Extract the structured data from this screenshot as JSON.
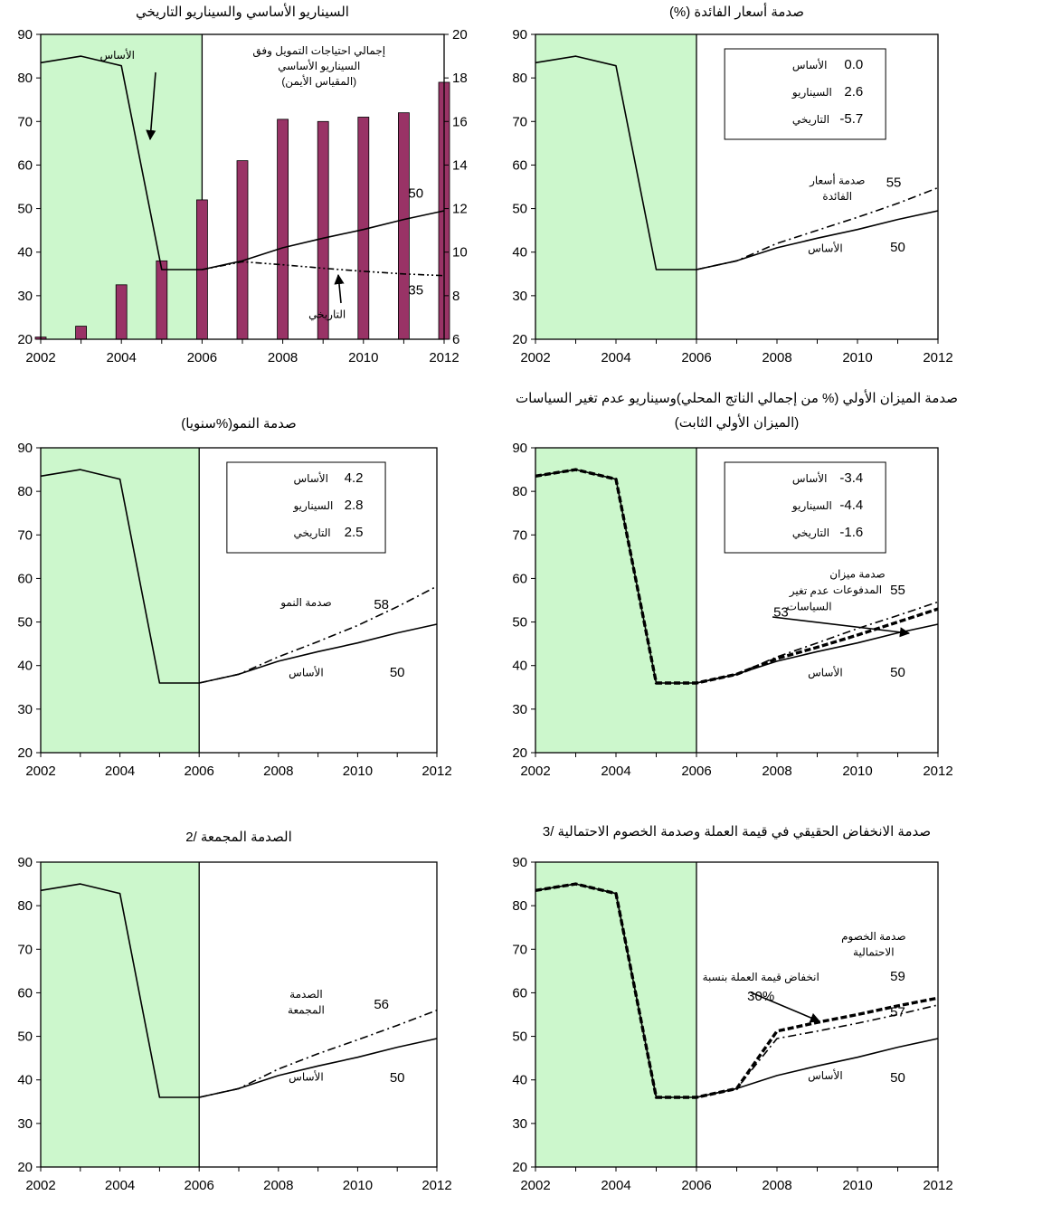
{
  "colors": {
    "shade": "#ccf7cc",
    "bar": "#993366",
    "line": "#000000",
    "background": "#ffffff"
  },
  "chart_data": [
    {
      "id": "p1",
      "type": "line",
      "title": "السيناريو الأساسي والسيناريو التاريخي",
      "ylim": [
        20,
        90
      ],
      "y2lim": [
        6,
        20
      ],
      "y_ticks": [
        20,
        30,
        40,
        50,
        60,
        70,
        80,
        90
      ],
      "y2_ticks": [
        6,
        8,
        10,
        12,
        14,
        16,
        18,
        20
      ],
      "x_ticks": [
        2002,
        2004,
        2006,
        2008,
        2010,
        2012
      ],
      "xlim": [
        2002,
        2012
      ],
      "shade_until": 2006,
      "series": [
        {
          "name": "الأساس",
          "style": "solid",
          "x": [
            2002,
            2003,
            2004,
            2005,
            2006,
            2007,
            2008,
            2009,
            2010,
            2011,
            2012
          ],
          "values": [
            83.5,
            85,
            82.8,
            36,
            36,
            38,
            41,
            43.2,
            45.2,
            47.5,
            49.5
          ]
        },
        {
          "name": "التاريخي",
          "style": "dashdotdot",
          "x": [
            2006,
            2007,
            2008,
            2009,
            2010,
            2011,
            2012
          ],
          "values": [
            36,
            37.8,
            37.1,
            36.3,
            35.6,
            35,
            34.6
          ]
        }
      ],
      "bars": {
        "name": "إجمالي احتياجات التمويل وفق السيناريو الأساسي (المقياس الأيمن)",
        "axis": "right",
        "x": [
          2002,
          2003,
          2004,
          2005,
          2006,
          2007,
          2008,
          2009,
          2010,
          2011,
          2012
        ],
        "values": [
          6.1,
          6.6,
          8.5,
          9.6,
          12.4,
          14.2,
          16.1,
          16,
          16.2,
          16.4,
          17.8
        ]
      },
      "annotations": [
        {
          "text": "الأساس",
          "x": 2003.9,
          "y": 84.4
        },
        {
          "text": "إجمالي احتياجات التمويل وفق",
          "x": 2008.9,
          "y": 85.4
        },
        {
          "text": "السيناريو الأساسي",
          "x": 2008.9,
          "y": 81.9
        },
        {
          "text": "(المقياس الأيمن)",
          "x": 2008.9,
          "y": 78.4
        },
        {
          "text": "التاريخي",
          "x": 2009.1,
          "y": 24.9
        },
        {
          "text": "50",
          "x": 2011.3,
          "y": 52.5
        },
        {
          "text": "35",
          "x": 2011.3,
          "y": 30.3
        }
      ]
    },
    {
      "id": "p2",
      "type": "line",
      "title": "صدمة أسعار الفائدة (%)",
      "ylim": [
        20,
        90
      ],
      "y_ticks": [
        20,
        30,
        40,
        50,
        60,
        70,
        80,
        90
      ],
      "x_ticks": [
        2002,
        2004,
        2006,
        2008,
        2010,
        2012
      ],
      "xlim": [
        2002,
        2012
      ],
      "shade_until": 2006,
      "series": [
        {
          "name": "الأساس",
          "style": "solid",
          "x": [
            2002,
            2003,
            2004,
            2005,
            2006,
            2007,
            2008,
            2009,
            2010,
            2011,
            2012
          ],
          "values": [
            83.5,
            85,
            82.8,
            36,
            36,
            38,
            41,
            43.2,
            45.2,
            47.5,
            49.5
          ]
        },
        {
          "name": "صدمة أسعار الفائدة",
          "style": "dashdot",
          "x": [
            2006,
            2007,
            2008,
            2009,
            2010,
            2011,
            2012
          ],
          "values": [
            36,
            38,
            42,
            45,
            48,
            51.2,
            54.8
          ]
        }
      ],
      "legend_table": [
        {
          "label": "الأساس",
          "value": "0.0"
        },
        {
          "label": "السيناريو",
          "value": "2.6"
        },
        {
          "label": "التاريخي",
          "value": "-5.7"
        }
      ],
      "annotations": [
        {
          "text": "صدمة أسعار",
          "x": 2009.5,
          "y": 55.6
        },
        {
          "text": "الفائدة",
          "x": 2009.5,
          "y": 52
        },
        {
          "text": "55",
          "x": 2010.9,
          "y": 55
        },
        {
          "text": "الأساس",
          "x": 2009.2,
          "y": 40
        },
        {
          "text": "50",
          "x": 2011.0,
          "y": 40.2
        }
      ]
    },
    {
      "id": "p3",
      "type": "line",
      "title": "صدمة النمو(%سنويا)",
      "ylim": [
        20,
        90
      ],
      "y_ticks": [
        20,
        30,
        40,
        50,
        60,
        70,
        80,
        90
      ],
      "x_ticks": [
        2002,
        2004,
        2006,
        2008,
        2010,
        2012
      ],
      "xlim": [
        2002,
        2012
      ],
      "shade_until": 2006,
      "series": [
        {
          "name": "الأساس",
          "style": "solid",
          "x": [
            2002,
            2003,
            2004,
            2005,
            2006,
            2007,
            2008,
            2009,
            2010,
            2011,
            2012
          ],
          "values": [
            83.5,
            85,
            82.8,
            36,
            36,
            38,
            41,
            43.2,
            45.2,
            47.5,
            49.5
          ]
        },
        {
          "name": "صدمة النمو",
          "style": "dashdot",
          "x": [
            2006,
            2007,
            2008,
            2009,
            2010,
            2011,
            2012
          ],
          "values": [
            36,
            38,
            42,
            45.5,
            49.2,
            53.5,
            58.2
          ]
        }
      ],
      "legend_table": [
        {
          "label": "الأساس",
          "value": "4.2"
        },
        {
          "label": "السيناريو",
          "value": "2.8"
        },
        {
          "label": "التاريخي",
          "value": "2.5"
        }
      ],
      "annotations": [
        {
          "text": "صدمة النمو",
          "x": 2008.7,
          "y": 53.6
        },
        {
          "text": "58",
          "x": 2010.6,
          "y": 53
        },
        {
          "text": "الأساس",
          "x": 2008.7,
          "y": 37.6
        },
        {
          "text": "50",
          "x": 2011.0,
          "y": 37.5
        }
      ]
    },
    {
      "id": "p4",
      "type": "line",
      "title": "صدمة الميزان الأولي (% من إجمالي الناتج المحلي)وسيناريو عدم تغير السياسات",
      "title2": "(الميزان الأولي الثابت)",
      "ylim": [
        20,
        90
      ],
      "y_ticks": [
        20,
        30,
        40,
        50,
        60,
        70,
        80,
        90
      ],
      "x_ticks": [
        2002,
        2004,
        2006,
        2008,
        2010,
        2012
      ],
      "xlim": [
        2002,
        2012
      ],
      "shade_until": 2006,
      "series": [
        {
          "name": "الأساس",
          "style": "solid",
          "x": [
            2002,
            2003,
            2004,
            2005,
            2006,
            2007,
            2008,
            2009,
            2010,
            2011,
            2012
          ],
          "values": [
            83.5,
            85,
            82.8,
            36,
            36,
            38,
            41,
            43.2,
            45.2,
            47.5,
            49.5
          ]
        },
        {
          "name": "صدمة ميزان المدفوعات",
          "style": "dashdot",
          "x": [
            2006,
            2007,
            2008,
            2009,
            2010,
            2011,
            2012
          ],
          "values": [
            36,
            38,
            42,
            45.2,
            48.5,
            51.5,
            54.6
          ]
        },
        {
          "name": "عدم تغير السياسات",
          "style": "thickdash",
          "x": [
            2002,
            2003,
            2004,
            2005,
            2006,
            2007,
            2008,
            2009,
            2010,
            2011,
            2012
          ],
          "values": [
            83.5,
            85,
            82.8,
            36,
            36,
            38,
            41.6,
            44.2,
            47,
            50,
            53
          ]
        }
      ],
      "legend_table": [
        {
          "label": "الأساس",
          "value": "-3.4"
        },
        {
          "label": "السيناريو",
          "value": "-4.4"
        },
        {
          "label": "التاريخي",
          "value": "-1.6"
        }
      ],
      "annotations": [
        {
          "text": "صدمة ميزان",
          "x": 2010.0,
          "y": 60.2
        },
        {
          "text": "المدفوعات",
          "x": 2010.0,
          "y": 56.6
        },
        {
          "text": "55",
          "x": 2011.0,
          "y": 56.3
        },
        {
          "text": "عدم تغير",
          "x": 2008.8,
          "y": 56.3
        },
        {
          "text": "السياسات",
          "x": 2008.8,
          "y": 52.7
        },
        {
          "text": "53",
          "x": 2008.1,
          "y": 51.3
        },
        {
          "text": "الأساس",
          "x": 2009.2,
          "y": 37.6
        },
        {
          "text": "50",
          "x": 2011.0,
          "y": 37.5
        }
      ]
    },
    {
      "id": "p5",
      "type": "line",
      "title": "الصدمة المجمعة /2",
      "ylim": [
        20,
        90
      ],
      "y_ticks": [
        20,
        30,
        40,
        50,
        60,
        70,
        80,
        90
      ],
      "x_ticks": [
        2002,
        2004,
        2006,
        2008,
        2010,
        2012
      ],
      "xlim": [
        2002,
        2012
      ],
      "shade_until": 2006,
      "series": [
        {
          "name": "الأساس",
          "style": "solid",
          "x": [
            2002,
            2003,
            2004,
            2005,
            2006,
            2007,
            2008,
            2009,
            2010,
            2011,
            2012
          ],
          "values": [
            83.5,
            85,
            82.8,
            36,
            36,
            38,
            41,
            43.2,
            45.2,
            47.5,
            49.5
          ]
        },
        {
          "name": "الصدمة المجمعة",
          "style": "dashdot",
          "x": [
            2006,
            2007,
            2008,
            2009,
            2010,
            2011,
            2012
          ],
          "values": [
            36,
            38,
            42.5,
            46,
            49.2,
            52.5,
            56
          ]
        }
      ],
      "annotations": [
        {
          "text": "الصدمة",
          "x": 2008.7,
          "y": 58.8
        },
        {
          "text": "المجمعة",
          "x": 2008.7,
          "y": 55.2
        },
        {
          "text": "56",
          "x": 2010.6,
          "y": 56.3
        },
        {
          "text": "الأساس",
          "x": 2008.7,
          "y": 39.8
        },
        {
          "text": "50",
          "x": 2011.0,
          "y": 39.5
        }
      ]
    },
    {
      "id": "p6",
      "type": "line",
      "title": "صدمة الانخفاض الحقيقي في قيمة العملة وصدمة الخصوم الاحتمالية /3",
      "ylim": [
        20,
        90
      ],
      "y_ticks": [
        20,
        30,
        40,
        50,
        60,
        70,
        80,
        90
      ],
      "x_ticks": [
        2002,
        2004,
        2006,
        2008,
        2010,
        2012
      ],
      "xlim": [
        2002,
        2012
      ],
      "shade_until": 2006,
      "series": [
        {
          "name": "الأساس",
          "style": "solid",
          "x": [
            2002,
            2003,
            2004,
            2005,
            2006,
            2007,
            2008,
            2009,
            2010,
            2011,
            2012
          ],
          "values": [
            83.5,
            85,
            82.8,
            36,
            36,
            38,
            41,
            43.2,
            45.2,
            47.5,
            49.5
          ]
        },
        {
          "name": "صدمة الخصوم الاحتمالية",
          "style": "thickdash",
          "x": [
            2002,
            2003,
            2004,
            2005,
            2006,
            2007,
            2008,
            2009,
            2010,
            2011,
            2012
          ],
          "values": [
            83.5,
            85,
            82.8,
            36,
            36,
            38,
            51.2,
            53.2,
            55,
            57,
            58.8
          ]
        },
        {
          "name": "انخفاض قيمة العملة",
          "style": "dashdot",
          "x": [
            2002,
            2003,
            2004,
            2005,
            2006,
            2007,
            2008,
            2009,
            2010,
            2011,
            2012
          ],
          "values": [
            83.5,
            85,
            82.8,
            36,
            36,
            38,
            49.5,
            51.2,
            53,
            55,
            57.2
          ]
        }
      ],
      "annotations": [
        {
          "text": "صدمة الخصوم",
          "x": 2010.4,
          "y": 72.1
        },
        {
          "text": "الاحتمالية",
          "x": 2010.4,
          "y": 68.5
        },
        {
          "text": "59",
          "x": 2011.0,
          "y": 62.8
        },
        {
          "text": "انخفاض قيمة العملة بنسبة",
          "x": 2007.6,
          "y": 62.8
        },
        {
          "text": "30%",
          "x": 2007.6,
          "y": 58.2
        },
        {
          "text": "57",
          "x": 2011.0,
          "y": 54.6
        },
        {
          "text": "الأساس",
          "x": 2009.2,
          "y": 40.2
        },
        {
          "text": "50",
          "x": 2011.0,
          "y": 39.5
        }
      ]
    }
  ]
}
